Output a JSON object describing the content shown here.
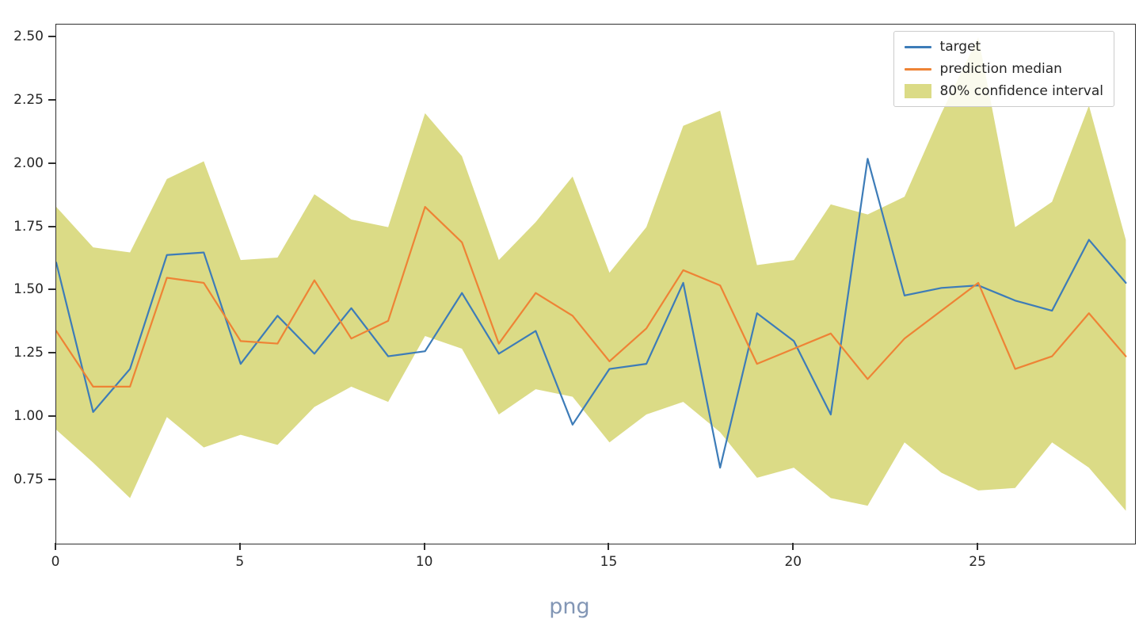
{
  "figure": {
    "caption": "png",
    "caption_color": "#8296b5",
    "background": "#ffffff",
    "spine_color": "#2f2f2f"
  },
  "chart_data": {
    "type": "line",
    "title": "",
    "xlabel": "",
    "ylabel": "",
    "grid": false,
    "x": [
      0,
      1,
      2,
      3,
      4,
      5,
      6,
      7,
      8,
      9,
      10,
      11,
      12,
      13,
      14,
      15,
      16,
      17,
      18,
      19,
      20,
      21,
      22,
      23,
      24,
      25,
      26,
      27,
      28,
      29
    ],
    "series": [
      {
        "name": "target",
        "color": "#3d7cb8",
        "values": [
          1.61,
          1.02,
          1.19,
          1.64,
          1.65,
          1.21,
          1.4,
          1.25,
          1.43,
          1.24,
          1.26,
          1.49,
          1.25,
          1.34,
          0.97,
          1.19,
          1.21,
          1.53,
          0.8,
          1.41,
          1.3,
          1.01,
          2.02,
          1.48,
          1.51,
          1.52,
          1.46,
          1.42,
          1.7,
          1.53
        ]
      },
      {
        "name": "prediction median",
        "color": "#ee8335",
        "values": [
          1.34,
          1.12,
          1.12,
          1.55,
          1.53,
          1.3,
          1.29,
          1.54,
          1.31,
          1.38,
          1.83,
          1.69,
          1.29,
          1.49,
          1.4,
          1.22,
          1.35,
          1.58,
          1.52,
          1.21,
          1.27,
          1.33,
          1.15,
          1.31,
          1.42,
          1.53,
          1.19,
          1.24,
          1.41,
          1.24
        ]
      }
    ],
    "band": {
      "name": "80% confidence interval",
      "color": "#bdbd22",
      "opacity": 0.55,
      "upper": [
        1.83,
        1.67,
        1.65,
        1.94,
        2.01,
        1.62,
        1.63,
        1.88,
        1.78,
        1.75,
        2.2,
        2.03,
        1.62,
        1.77,
        1.95,
        1.57,
        1.75,
        2.15,
        2.21,
        1.6,
        1.62,
        1.84,
        1.8,
        1.87,
        2.2,
        2.5,
        1.75,
        1.85,
        2.23,
        1.7
      ],
      "lower": [
        0.95,
        0.82,
        0.68,
        1.0,
        0.88,
        0.93,
        0.89,
        1.04,
        1.12,
        1.06,
        1.32,
        1.27,
        1.01,
        1.11,
        1.08,
        0.9,
        1.01,
        1.06,
        0.94,
        0.76,
        0.8,
        0.68,
        0.65,
        0.9,
        0.78,
        0.71,
        0.72,
        0.9,
        0.8,
        0.63
      ]
    },
    "xlim": [
      0,
      29.25
    ],
    "ylim": [
      0.5,
      2.55
    ],
    "x_ticks": [
      0,
      5,
      10,
      15,
      20,
      25
    ],
    "y_ticks": [
      0.75,
      1.0,
      1.25,
      1.5,
      1.75,
      2.0,
      2.25,
      2.5
    ],
    "legend": {
      "position": "upper right"
    }
  }
}
